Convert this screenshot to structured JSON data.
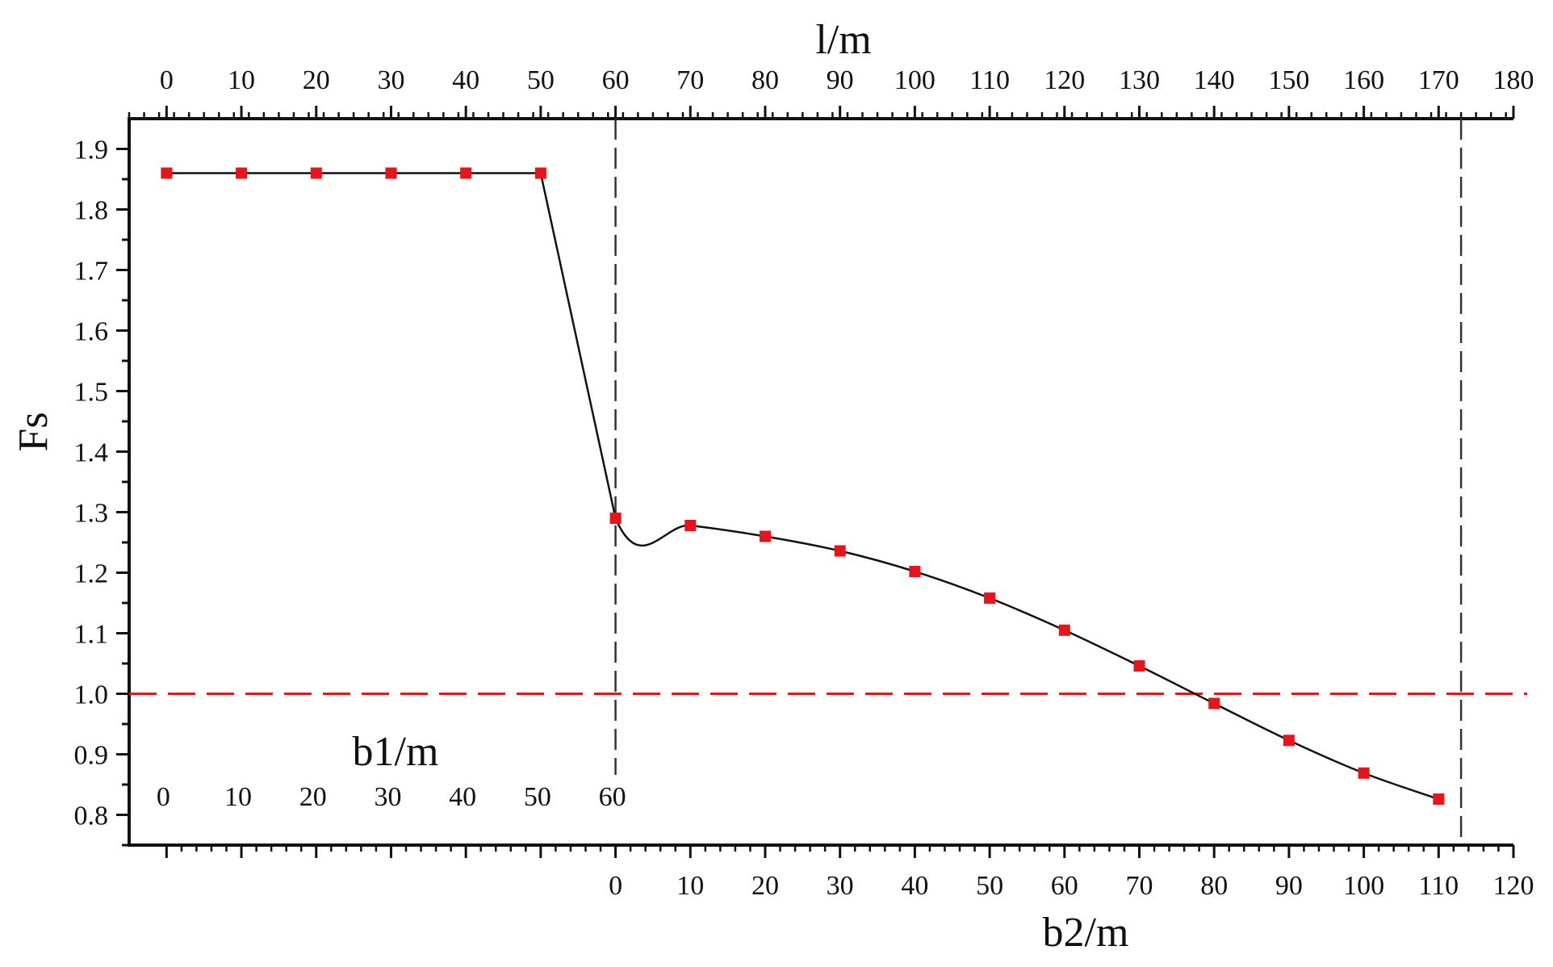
{
  "chart_data": {
    "type": "line",
    "title": "",
    "ylabel": "Fs",
    "x_top_label": "l/m",
    "x_bottom_label": "b2/m",
    "inner_label": "b1/m",
    "ylim": [
      0.75,
      1.95
    ],
    "yticks": [
      "0.8",
      "0.9",
      "1.0",
      "1.1",
      "1.2",
      "1.3",
      "1.4",
      "1.5",
      "1.6",
      "1.7",
      "1.8",
      "1.9"
    ],
    "xlim_top": [
      -5,
      180
    ],
    "xticks_top": [
      "0",
      "10",
      "20",
      "30",
      "40",
      "50",
      "60",
      "70",
      "80",
      "90",
      "100",
      "110",
      "120",
      "130",
      "140",
      "150",
      "160",
      "170",
      "180"
    ],
    "xticks_b1": [
      "0",
      "10",
      "20",
      "30",
      "40",
      "50",
      "60"
    ],
    "xticks_b2": [
      "0",
      "10",
      "20",
      "30",
      "40",
      "50",
      "60",
      "70",
      "80",
      "90",
      "100",
      "110",
      "120"
    ],
    "b2_offset_in_l": 60,
    "reference_y": 1.0,
    "vertical_lines_l": [
      60,
      173
    ],
    "marker_color": "#e8141b",
    "reference_line_color": "#e8141b",
    "line_color": "#111111",
    "series": [
      {
        "x": [
          0,
          10,
          20,
          30,
          40,
          50,
          60,
          70,
          80,
          90,
          100,
          110,
          120,
          130,
          140,
          150,
          160,
          170
        ],
        "y": [
          1.86,
          1.86,
          1.86,
          1.86,
          1.86,
          1.86,
          1.29,
          1.278,
          1.26,
          1.236,
          1.202,
          1.158,
          1.105,
          1.046,
          0.984,
          0.923,
          0.869,
          0.826
        ]
      }
    ]
  }
}
